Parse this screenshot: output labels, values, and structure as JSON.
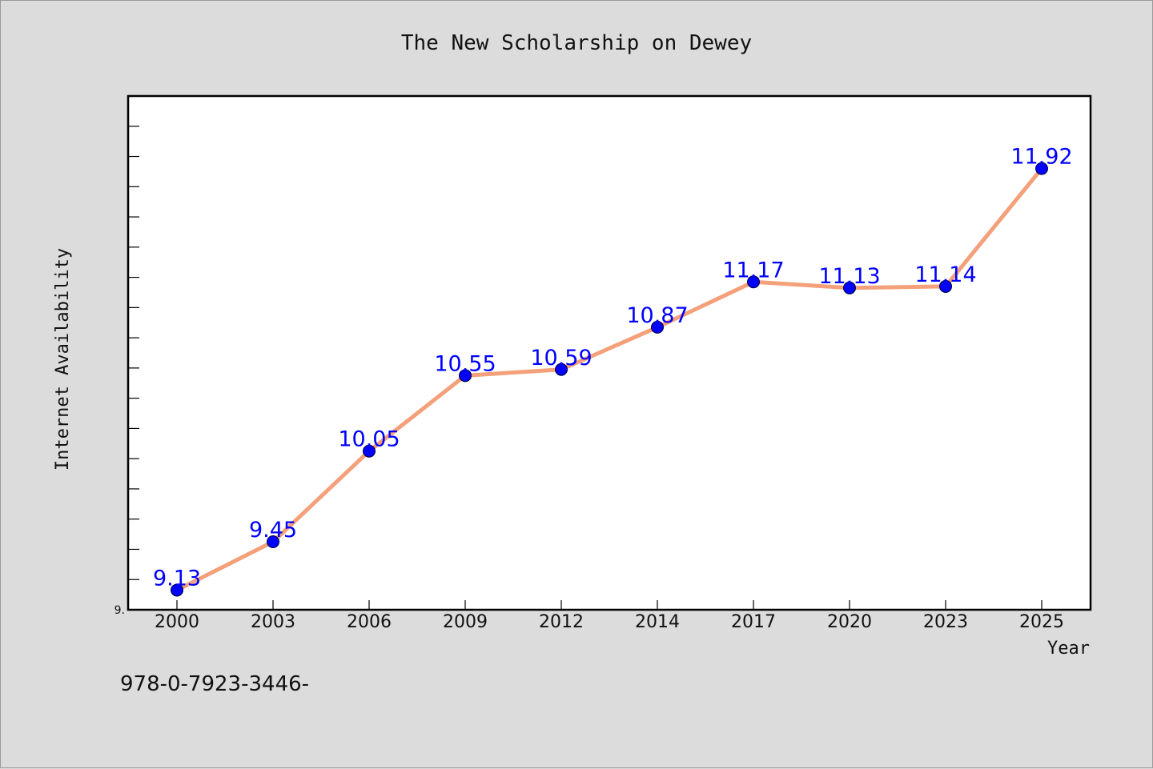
{
  "chart_data": {
    "type": "line",
    "title": "The New Scholarship on Dewey",
    "xlabel": "Year",
    "ylabel": "Internet Availability",
    "categories": [
      "2000",
      "2003",
      "2006",
      "2009",
      "2012",
      "2014",
      "2017",
      "2020",
      "2023",
      "2025"
    ],
    "series": [
      {
        "values": [
          9.13,
          9.45,
          10.05,
          10.55,
          10.59,
          10.87,
          11.17,
          11.13,
          11.14,
          11.92
        ],
        "data_labels": [
          "9.13",
          "9.45",
          "10.05",
          "10.55",
          "10.59",
          "10.87",
          "11.17",
          "11.13",
          "11.14",
          "11.92"
        ]
      }
    ],
    "ylim": [
      9.0,
      12.4
    ],
    "y_tick_label": "9.",
    "grid": false,
    "line_color": "#f4a07a",
    "marker_color": "#0000ff",
    "data_label_color": "#0000ff"
  },
  "footnote": "978-0-7923-3446-"
}
